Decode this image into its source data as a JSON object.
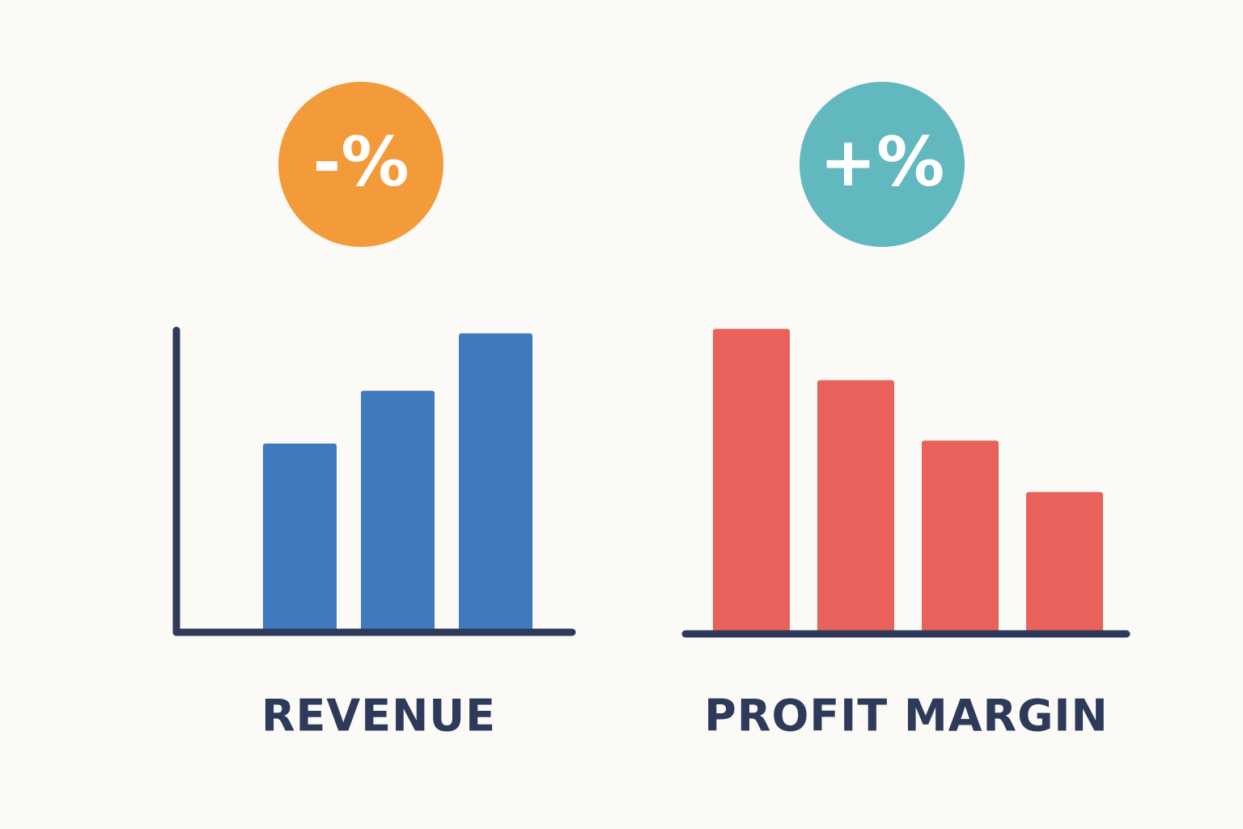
{
  "chart_data": [
    {
      "type": "bar",
      "title": "REVENUE",
      "badge": {
        "text": "-%",
        "color": "#f39b3a"
      },
      "values": [
        62.5,
        80,
        99
      ],
      "color": "#3f7bbc",
      "ylim": [
        0,
        100
      ],
      "y_axis_line": true
    },
    {
      "type": "bar",
      "title": "PROFIT MARGIN",
      "badge": {
        "text": "+%",
        "color": "#62b8bf"
      },
      "values": [
        101,
        84,
        64,
        47
      ],
      "color": "#e8625b",
      "ylim": [
        0,
        100
      ],
      "y_axis_line": false
    }
  ]
}
